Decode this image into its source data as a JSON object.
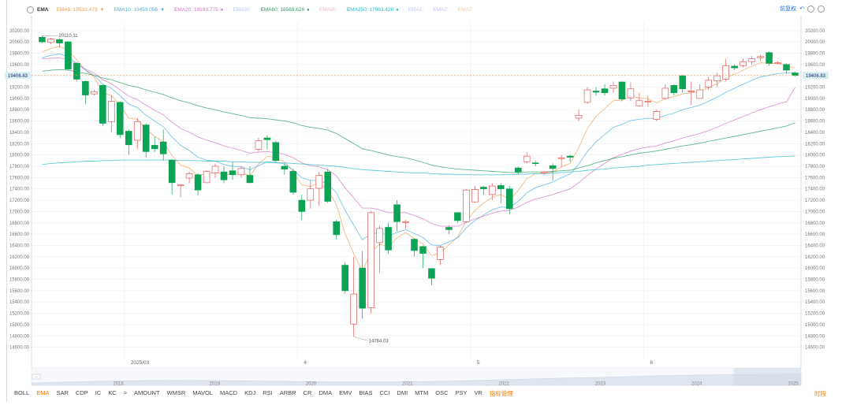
{
  "toolbar": {
    "indicator_name": "EMA",
    "legends": [
      {
        "label": "EMA5:",
        "value": "19533.473",
        "color": "#f2a25a",
        "arrow": "▼"
      },
      {
        "label": "EMA10:",
        "value": "19459.056",
        "color": "#49b3e0",
        "arrow": "▼"
      },
      {
        "label": "EMA20:",
        "value": "19193.775",
        "color": "#d874c6",
        "arrow": "●"
      },
      {
        "label": "EMA30:",
        "value": "",
        "color": "#b7c7e8",
        "arrow": ""
      },
      {
        "label": "EMA60:",
        "value": "18569.626",
        "color": "#2f9f6a",
        "arrow": "●"
      },
      {
        "label": "EMA90:",
        "value": "",
        "color": "#f3b3c4",
        "arrow": ""
      },
      {
        "label": "EMA250:",
        "value": "17983.428",
        "color": "#2fb8c8",
        "arrow": "●"
      },
      {
        "label": "EMA1:",
        "value": "",
        "color": "#b7c7e8",
        "arrow": ""
      },
      {
        "label": "EMA2:",
        "value": "",
        "color": "#c9b7e8",
        "arrow": ""
      },
      {
        "label": "EMA3:",
        "value": "",
        "color": "#f0c8a0",
        "arrow": ""
      }
    ]
  },
  "right_controls": {
    "restore_label": "前复权"
  },
  "chart_data": {
    "type": "candlestick",
    "y_ticks": [
      "20200.00",
      "20000.00",
      "19800.00",
      "19600.00",
      "19400.00",
      "19200.00",
      "19000.00",
      "18800.00",
      "18600.00",
      "18400.00",
      "18200.00",
      "18000.00",
      "17800.00",
      "17600.00",
      "17400.00",
      "17200.00",
      "17000.00",
      "16800.00",
      "16600.00",
      "16400.00",
      "16200.00",
      "16000.00",
      "15800.00",
      "15600.00",
      "15400.00",
      "15200.00",
      "15000.00",
      "14800.00",
      "14600.00"
    ],
    "ylim": [
      14400,
      20350
    ],
    "current_price": "19406.83",
    "high_label": "20110.11",
    "low_label": "14784.03",
    "x_labels": [
      {
        "label": "2025/03",
        "index": 10
      },
      {
        "label": "4",
        "index": 30
      },
      {
        "label": "5",
        "index": 50
      },
      {
        "label": "6",
        "index": 70
      }
    ],
    "candles": [
      [
        20080,
        20000,
        20110,
        19980
      ],
      [
        19990,
        20050,
        20070,
        19960
      ],
      [
        20040,
        19980,
        20060,
        19900
      ],
      [
        20000,
        19520,
        20010,
        19500
      ],
      [
        19620,
        19340,
        19640,
        19300
      ],
      [
        19300,
        19060,
        19320,
        18900
      ],
      [
        19080,
        19120,
        19150,
        19050
      ],
      [
        19230,
        18560,
        19250,
        18520
      ],
      [
        18590,
        18950,
        19050,
        18400
      ],
      [
        18930,
        18360,
        18950,
        18300
      ],
      [
        18420,
        18180,
        18450,
        18000
      ],
      [
        18260,
        18590,
        18650,
        18100
      ],
      [
        18530,
        18060,
        18560,
        17950
      ],
      [
        18170,
        18110,
        18320,
        18050
      ],
      [
        18230,
        18020,
        18450,
        17900
      ],
      [
        17910,
        17510,
        17930,
        17300
      ],
      [
        17460,
        17470,
        17480,
        17250
      ],
      [
        17590,
        17670,
        17700,
        17500
      ],
      [
        17650,
        17380,
        17680,
        17280
      ],
      [
        17510,
        17710,
        17730,
        17500
      ],
      [
        17680,
        17800,
        17850,
        17600
      ],
      [
        17700,
        17560,
        17800,
        17500
      ],
      [
        17720,
        17650,
        17880,
        17560
      ],
      [
        17650,
        17760,
        17800,
        17600
      ],
      [
        17640,
        17510,
        17800,
        17500
      ],
      [
        18100,
        18250,
        18300,
        18050
      ],
      [
        18300,
        18270,
        18350,
        18100
      ],
      [
        18220,
        17900,
        18250,
        17880
      ],
      [
        17800,
        17750,
        17850,
        17650
      ],
      [
        17710,
        17340,
        17750,
        17300
      ],
      [
        17200,
        17000,
        17300,
        16850
      ],
      [
        17200,
        17400,
        17550,
        17050
      ],
      [
        17410,
        17640,
        17700,
        17100
      ],
      [
        17700,
        17180,
        17750,
        17150
      ],
      [
        16820,
        16590,
        16850,
        16500
      ],
      [
        16050,
        15600,
        16100,
        15550
      ],
      [
        15010,
        15540,
        16200,
        14784
      ],
      [
        16000,
        15290,
        16300,
        15100
      ],
      [
        15300,
        16980,
        17000,
        15200
      ],
      [
        16450,
        16700,
        16750,
        15920
      ],
      [
        16720,
        16320,
        16800,
        16250
      ],
      [
        17120,
        16820,
        17200,
        16650
      ],
      [
        16810,
        16820,
        16850,
        16700
      ],
      [
        16510,
        16310,
        16530,
        16200
      ],
      [
        16380,
        16260,
        16400,
        16000
      ],
      [
        15990,
        15820,
        16000,
        15700
      ],
      [
        16150,
        16370,
        16400,
        16050
      ],
      [
        16720,
        16680,
        16750,
        16600
      ],
      [
        16980,
        16840,
        16980,
        16800
      ],
      [
        16820,
        17380,
        17400,
        16800
      ],
      [
        17170,
        17390,
        17450,
        17150
      ],
      [
        17430,
        17400,
        17450,
        17300
      ],
      [
        17300,
        17450,
        17500,
        17200
      ],
      [
        17460,
        17400,
        17500,
        17150
      ],
      [
        17400,
        17050,
        17450,
        16950
      ],
      [
        17770,
        17700,
        17800,
        17650
      ],
      [
        17880,
        17980,
        18050,
        17850
      ],
      [
        17860,
        17850,
        17900,
        17800
      ],
      [
        17680,
        17700,
        17720,
        17650
      ],
      [
        17810,
        17760,
        17850,
        17550
      ],
      [
        17940,
        17950,
        18000,
        17800
      ],
      [
        17980,
        17960,
        18000,
        17880
      ],
      [
        18650,
        18700,
        18800,
        18600
      ],
      [
        18930,
        19150,
        19200,
        18900
      ],
      [
        19130,
        19110,
        19200,
        19050
      ],
      [
        19170,
        19100,
        19250,
        19050
      ],
      [
        19180,
        19230,
        19300,
        19100
      ],
      [
        19290,
        18990,
        19300,
        18950
      ],
      [
        19010,
        19170,
        19280,
        18950
      ],
      [
        18870,
        18960,
        19100,
        18850
      ],
      [
        18940,
        18950,
        19050,
        18850
      ],
      [
        18630,
        18770,
        18800,
        18600
      ],
      [
        19000,
        19180,
        19250,
        18980
      ],
      [
        19230,
        19100,
        19250,
        19050
      ],
      [
        19400,
        19170,
        19420,
        19100
      ],
      [
        19120,
        19130,
        19300,
        18880
      ],
      [
        19000,
        19150,
        19250,
        19000
      ],
      [
        19200,
        19320,
        19380,
        19150
      ],
      [
        19310,
        19400,
        19450,
        19200
      ],
      [
        19340,
        19580,
        19700,
        19300
      ],
      [
        19570,
        19540,
        19600,
        19500
      ],
      [
        19580,
        19650,
        19700,
        19550
      ],
      [
        19650,
        19700,
        19750,
        19600
      ],
      [
        19720,
        19740,
        19770,
        19660
      ],
      [
        19810,
        19620,
        19830,
        19580
      ],
      [
        19630,
        19630,
        19660,
        19600
      ],
      [
        19600,
        19500,
        19620,
        19440
      ],
      [
        19450,
        19406,
        19470,
        19390
      ]
    ],
    "ema_lines": [
      {
        "name": "EMA5",
        "color": "#f2a25a",
        "values": [
          19820,
          19880,
          19920,
          19860,
          19680,
          19500,
          19380,
          19100,
          19050,
          18880,
          18650,
          18630,
          18450,
          18330,
          18230,
          17990,
          17820,
          17770,
          17640,
          17660,
          17700,
          17650,
          17660,
          17690,
          17630,
          17840,
          17980,
          17950,
          17880,
          17700,
          17470,
          17440,
          17500,
          17390,
          17120,
          16610,
          16250,
          15940,
          16290,
          16420,
          16380,
          16530,
          16630,
          16520,
          16430,
          16220,
          16270,
          16410,
          16550,
          16830,
          17020,
          17150,
          17250,
          17300,
          17210,
          17370,
          17580,
          17670,
          17680,
          17700,
          17790,
          17850,
          18130,
          18470,
          18680,
          18820,
          18960,
          18970,
          19040,
          19010,
          18990,
          18920,
          19000,
          19030,
          19080,
          19100,
          19120,
          19190,
          19260,
          19370,
          19430,
          19500,
          19570,
          19630,
          19620,
          19620,
          19580,
          19533
        ]
      },
      {
        "name": "EMA10",
        "color": "#49b3e0",
        "values": [
          19720,
          19760,
          19790,
          19730,
          19620,
          19500,
          19410,
          19250,
          19180,
          19050,
          18900,
          18840,
          18700,
          18600,
          18500,
          18320,
          18170,
          18080,
          17960,
          17910,
          17890,
          17830,
          17800,
          17790,
          17740,
          17810,
          17880,
          17870,
          17840,
          17740,
          17600,
          17550,
          17550,
          17490,
          17330,
          17020,
          16760,
          16500,
          16600,
          16630,
          16570,
          16630,
          16680,
          16610,
          16540,
          16410,
          16400,
          16460,
          16530,
          16710,
          16840,
          16940,
          17030,
          17080,
          17070,
          17180,
          17330,
          17420,
          17470,
          17520,
          17600,
          17660,
          17840,
          18060,
          18230,
          18360,
          18490,
          18540,
          18610,
          18630,
          18650,
          18640,
          18700,
          18740,
          18800,
          18840,
          18880,
          18950,
          19020,
          19110,
          19180,
          19250,
          19320,
          19380,
          19410,
          19440,
          19450,
          19459
        ]
      },
      {
        "name": "EMA20",
        "color": "#d874c6",
        "values": [
          19700,
          19710,
          19720,
          19680,
          19610,
          19520,
          19450,
          19330,
          19260,
          19150,
          19040,
          18980,
          18880,
          18790,
          18710,
          18580,
          18470,
          18400,
          18320,
          18260,
          18220,
          18160,
          18120,
          18080,
          18030,
          18050,
          18060,
          18040,
          18010,
          17950,
          17860,
          17810,
          17790,
          17740,
          17630,
          17420,
          17240,
          17060,
          17060,
          17030,
          16980,
          16980,
          16980,
          16930,
          16870,
          16790,
          16740,
          16740,
          16740,
          16810,
          16870,
          16920,
          16970,
          17010,
          17020,
          17080,
          17160,
          17220,
          17260,
          17300,
          17350,
          17400,
          17510,
          17640,
          17750,
          17850,
          17950,
          18010,
          18070,
          18110,
          18140,
          18160,
          18210,
          18250,
          18300,
          18340,
          18380,
          18430,
          18490,
          18560,
          18620,
          18680,
          18740,
          18800,
          18850,
          18900,
          18940,
          19193
        ]
      },
      {
        "name": "EMA60",
        "color": "#2f9f6a",
        "values": [
          19480,
          19500,
          19510,
          19500,
          19470,
          19440,
          19410,
          19360,
          19330,
          19280,
          19230,
          19200,
          19150,
          19110,
          19070,
          19010,
          18960,
          18920,
          18870,
          18830,
          18800,
          18760,
          18730,
          18700,
          18660,
          18650,
          18640,
          18620,
          18600,
          18570,
          18520,
          18490,
          18470,
          18440,
          18380,
          18290,
          18200,
          18110,
          18080,
          18040,
          18000,
          17970,
          17950,
          17910,
          17870,
          17820,
          17790,
          17770,
          17750,
          17740,
          17730,
          17720,
          17710,
          17700,
          17690,
          17690,
          17700,
          17700,
          17700,
          17710,
          17720,
          17730,
          17770,
          17810,
          17860,
          17900,
          17940,
          17970,
          18000,
          18030,
          18050,
          18070,
          18100,
          18130,
          18160,
          18180,
          18210,
          18240,
          18270,
          18300,
          18330,
          18360,
          18390,
          18420,
          18450,
          18480,
          18510,
          18569
        ]
      },
      {
        "name": "EMA250",
        "color": "#2fb8c8",
        "values": [
          17830,
          17850,
          17860,
          17870,
          17880,
          17890,
          17890,
          17900,
          17900,
          17910,
          17910,
          17910,
          17910,
          17910,
          17910,
          17910,
          17900,
          17900,
          17900,
          17890,
          17890,
          17890,
          17880,
          17880,
          17870,
          17870,
          17870,
          17860,
          17860,
          17850,
          17840,
          17830,
          17820,
          17810,
          17800,
          17780,
          17760,
          17740,
          17730,
          17720,
          17710,
          17700,
          17690,
          17680,
          17680,
          17670,
          17660,
          17660,
          17650,
          17650,
          17650,
          17650,
          17650,
          17650,
          17650,
          17660,
          17660,
          17670,
          17670,
          17680,
          17690,
          17700,
          17710,
          17730,
          17740,
          17750,
          17770,
          17780,
          17790,
          17800,
          17820,
          17830,
          17840,
          17850,
          17860,
          17870,
          17880,
          17890,
          17900,
          17910,
          17920,
          17930,
          17940,
          17950,
          17960,
          17970,
          17975,
          17983
        ]
      }
    ]
  },
  "navigator": {
    "years": [
      "2018",
      "2019",
      "2020",
      "2021",
      "2022",
      "2023",
      "2024",
      "2025"
    ],
    "handle_icon": "drag-handle-icon"
  },
  "indicator_tabs": [
    "BOLL",
    "EMA",
    "SAR",
    "CDP",
    "IC",
    "KC",
    ">",
    "AMOUNT",
    "WMSR",
    "MAVOL",
    "MACD",
    "KDJ",
    "RSI",
    "ARBR",
    "CR",
    "DMA",
    "EMV",
    "BIAS",
    "CCI",
    "DMI",
    "MTM",
    "OSC",
    "PSY",
    "VR",
    "指标管理"
  ],
  "active_tab": "EMA",
  "frequency_label": "时段"
}
